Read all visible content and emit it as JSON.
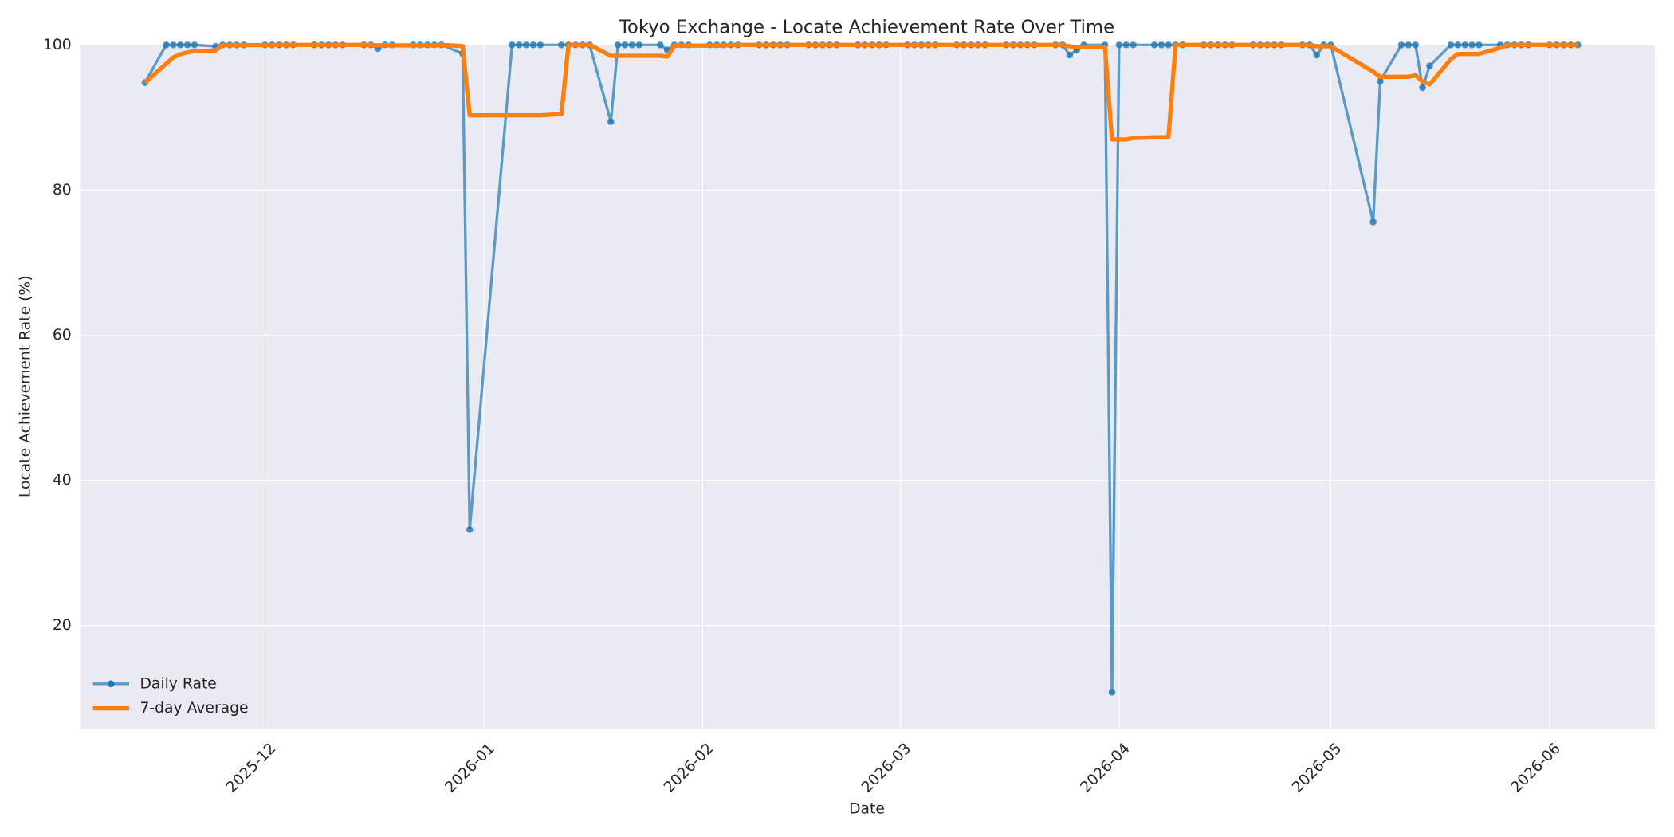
{
  "chart_data": {
    "type": "line",
    "title": "Tokyo Exchange - Locate Achievement Rate Over Time",
    "x_label": "Date",
    "y_label": "Locate Achievement Rate (%)",
    "x": [
      20406,
      20409,
      20410,
      20411,
      20412,
      20413,
      20416,
      20417,
      20418,
      20419,
      20420,
      20423,
      20424,
      20425,
      20426,
      20427,
      20430,
      20431,
      20432,
      20433,
      20434,
      20437,
      20438,
      20439,
      20440,
      20441,
      20444,
      20445,
      20446,
      20447,
      20448,
      20451,
      20452,
      20458,
      20459,
      20460,
      20461,
      20462,
      20465,
      20466,
      20467,
      20468,
      20469,
      20472,
      20473,
      20474,
      20475,
      20476,
      20479,
      20480,
      20481,
      20482,
      20483,
      20486,
      20487,
      20488,
      20489,
      20490,
      20493,
      20494,
      20495,
      20496,
      20497,
      20500,
      20501,
      20502,
      20503,
      20504,
      20507,
      20508,
      20509,
      20510,
      20511,
      20514,
      20515,
      20516,
      20517,
      20518,
      20521,
      20522,
      20523,
      20524,
      20525,
      20528,
      20529,
      20530,
      20531,
      20532,
      20535,
      20536,
      20537,
      20538,
      20539,
      20542,
      20543,
      20544,
      20545,
      20546,
      20549,
      20550,
      20551,
      20552,
      20553,
      20556,
      20557,
      20558,
      20559,
      20560,
      20563,
      20564,
      20565,
      20566,
      20567,
      20570,
      20571,
      20572,
      20573,
      20574,
      20580,
      20581,
      20584,
      20585,
      20586,
      20587,
      20588,
      20591,
      20592,
      20593,
      20594,
      20595,
      20598,
      20599,
      20600,
      20601,
      20602,
      20605,
      20606,
      20607,
      20608,
      20609
    ],
    "series": [
      {
        "name": "Daily Rate",
        "color": "#1f77b4",
        "marker": true,
        "values": [
          94.8,
          100,
          100,
          100,
          100,
          100,
          99.8,
          100,
          100,
          100,
          100,
          100,
          100,
          100,
          100,
          100,
          100,
          100,
          100,
          100,
          100,
          100,
          100,
          99.5,
          100,
          100,
          100,
          100,
          100,
          100,
          100,
          98.8,
          33.2,
          100,
          100,
          100,
          100,
          100,
          100,
          100,
          100,
          100,
          100,
          89.4,
          100,
          100,
          100,
          100,
          100,
          99.3,
          100,
          100,
          100,
          100,
          100,
          100,
          100,
          100,
          100,
          100,
          100,
          100,
          100,
          100,
          100,
          100,
          100,
          100,
          100,
          100,
          100,
          100,
          100,
          100,
          100,
          100,
          100,
          100,
          100,
          100,
          100,
          100,
          100,
          100,
          100,
          100,
          100,
          100,
          100,
          100,
          98.6,
          99.3,
          100,
          100,
          10.8,
          100,
          100,
          100,
          100,
          100,
          100,
          100,
          100,
          100,
          100,
          100,
          100,
          100,
          100,
          100,
          100,
          100,
          100,
          100,
          100,
          98.6,
          100,
          100,
          75.6,
          95.0,
          100,
          100,
          100,
          94.1,
          97.1,
          100,
          100,
          100,
          100,
          100,
          100,
          100,
          100,
          100,
          100,
          100,
          100,
          100,
          100,
          100
        ]
      },
      {
        "name": "7-day Average",
        "color": "#ff7f0e",
        "marker": false,
        "values": [
          94.8,
          97.4,
          98.27,
          98.7,
          98.96,
          99.13,
          99.23,
          99.97,
          99.97,
          99.97,
          99.97,
          99.97,
          99.97,
          100,
          100,
          100,
          100,
          100,
          100,
          100,
          100,
          100,
          100,
          99.93,
          99.93,
          99.93,
          99.93,
          99.93,
          99.93,
          99.93,
          100,
          99.83,
          90.29,
          90.29,
          90.29,
          90.29,
          90.29,
          90.29,
          90.46,
          100,
          100,
          100,
          100,
          98.49,
          98.49,
          98.49,
          98.49,
          98.49,
          98.49,
          98.39,
          99.9,
          99.9,
          99.9,
          99.9,
          99.9,
          99.9,
          100,
          100,
          100,
          100,
          100,
          100,
          100,
          100,
          100,
          100,
          100,
          100,
          100,
          100,
          100,
          100,
          100,
          100,
          100,
          100,
          100,
          100,
          100,
          100,
          100,
          100,
          100,
          100,
          100,
          100,
          100,
          100,
          100,
          100,
          99.8,
          99.7,
          99.7,
          99.7,
          86.96,
          86.96,
          86.96,
          87.16,
          87.26,
          87.26,
          87.26,
          100,
          100,
          100,
          100,
          100,
          100,
          100,
          100,
          100,
          100,
          100,
          100,
          100,
          100,
          99.8,
          99.8,
          99.8,
          96.31,
          95.6,
          95.6,
          95.6,
          95.8,
          94.96,
          94.54,
          98.03,
          98.74,
          98.74,
          98.74,
          98.74,
          99.59,
          100,
          100,
          100,
          100,
          100,
          100,
          100,
          100,
          100
        ]
      }
    ],
    "xlim": [
      20396.8,
      20619.9
    ],
    "ylim": [
      5.7,
      100
    ],
    "xticks": [
      {
        "value": 20423,
        "label": "2025-12"
      },
      {
        "value": 20454,
        "label": "2026-01"
      },
      {
        "value": 20485,
        "label": "2026-02"
      },
      {
        "value": 20513,
        "label": "2026-03"
      },
      {
        "value": 20544,
        "label": "2026-04"
      },
      {
        "value": 20574,
        "label": "2026-05"
      },
      {
        "value": 20605,
        "label": "2026-06"
      }
    ],
    "yticks": [
      20,
      40,
      60,
      80,
      100
    ],
    "grid": true,
    "legend_loc": "lower left"
  }
}
